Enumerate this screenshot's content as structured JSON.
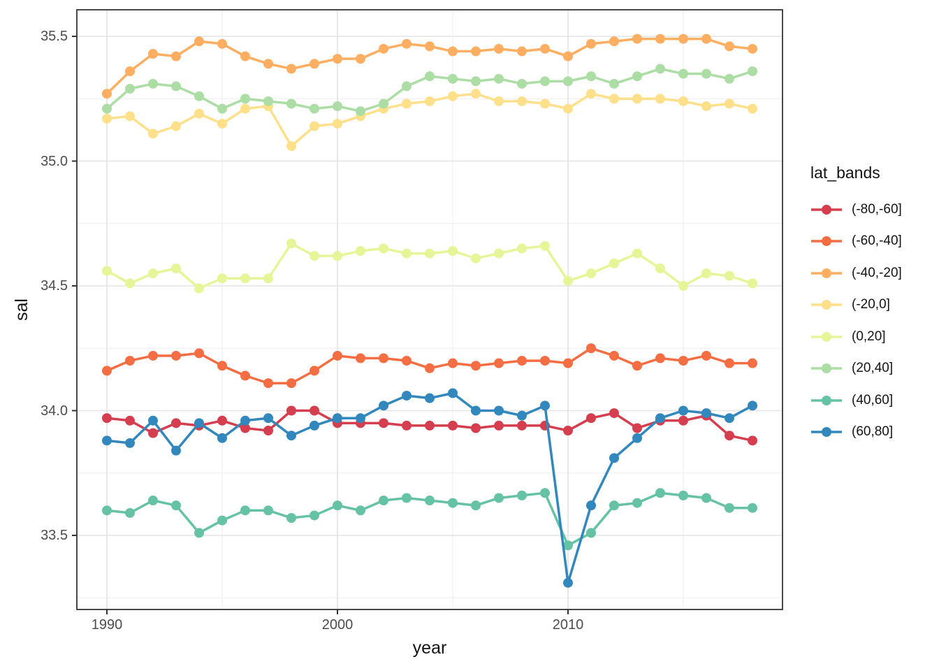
{
  "chart_data": {
    "type": "line",
    "title": "",
    "xlabel": "year",
    "ylabel": "sal",
    "legend_title": "lat_bands",
    "legend_position": "right",
    "grid": true,
    "x": [
      1990,
      1991,
      1992,
      1993,
      1994,
      1995,
      1996,
      1997,
      1998,
      1999,
      2000,
      2001,
      2002,
      2003,
      2004,
      2005,
      2006,
      2007,
      2008,
      2009,
      2010,
      2011,
      2012,
      2013,
      2014,
      2015,
      2016,
      2017,
      2018
    ],
    "x_ticks": [
      1990,
      2000,
      2010
    ],
    "x_tick_labels": [
      "1990",
      "2000",
      "2010"
    ],
    "x_minor_ticks": [
      1995,
      2005,
      2015
    ],
    "y_ticks": [
      33.5,
      34.0,
      34.5,
      35.0,
      35.5
    ],
    "y_tick_labels": [
      "33.5",
      "34.0",
      "34.5",
      "35.0",
      "35.5"
    ],
    "y_minor_ticks": [
      33.25,
      33.75,
      34.25,
      34.75,
      35.25
    ],
    "xlim": [
      1988.7,
      2019.3
    ],
    "ylim": [
      33.2,
      35.61
    ],
    "series": [
      {
        "name": "(-80,-60]",
        "color": "#D53E4F",
        "values": [
          33.97,
          33.96,
          33.91,
          33.95,
          33.94,
          33.96,
          33.93,
          33.92,
          34.0,
          34.0,
          33.95,
          33.95,
          33.95,
          33.94,
          33.94,
          33.94,
          33.93,
          33.94,
          33.94,
          33.94,
          33.92,
          33.97,
          33.99,
          33.93,
          33.96,
          33.96,
          33.98,
          33.9,
          33.88
        ]
      },
      {
        "name": "(-60,-40]",
        "color": "#F46D43",
        "values": [
          34.16,
          34.2,
          34.22,
          34.22,
          34.23,
          34.18,
          34.14,
          34.11,
          34.11,
          34.16,
          34.22,
          34.21,
          34.21,
          34.2,
          34.17,
          34.19,
          34.18,
          34.19,
          34.2,
          34.2,
          34.19,
          34.25,
          34.22,
          34.18,
          34.21,
          34.2,
          34.22,
          34.19,
          34.19
        ]
      },
      {
        "name": "(-40,-20]",
        "color": "#FDAE61",
        "values": [
          35.27,
          35.36,
          35.43,
          35.42,
          35.48,
          35.47,
          35.42,
          35.39,
          35.37,
          35.39,
          35.41,
          35.41,
          35.45,
          35.47,
          35.46,
          35.44,
          35.44,
          35.45,
          35.44,
          35.45,
          35.42,
          35.47,
          35.48,
          35.49,
          35.49,
          35.49,
          35.49,
          35.46,
          35.45
        ]
      },
      {
        "name": "(-20,0]",
        "color": "#FEE08B",
        "values": [
          35.17,
          35.18,
          35.11,
          35.14,
          35.19,
          35.15,
          35.21,
          35.22,
          35.06,
          35.14,
          35.15,
          35.18,
          35.21,
          35.23,
          35.24,
          35.26,
          35.27,
          35.24,
          35.24,
          35.23,
          35.21,
          35.27,
          35.25,
          35.25,
          35.25,
          35.24,
          35.22,
          35.23,
          35.21
        ]
      },
      {
        "name": "(0,20]",
        "color": "#E6F598",
        "values": [
          34.56,
          34.51,
          34.55,
          34.57,
          34.49,
          34.53,
          34.53,
          34.53,
          34.67,
          34.62,
          34.62,
          34.64,
          34.65,
          34.63,
          34.63,
          34.64,
          34.61,
          34.63,
          34.65,
          34.66,
          34.52,
          34.55,
          34.59,
          34.63,
          34.57,
          34.5,
          34.55,
          34.54,
          34.51
        ]
      },
      {
        "name": "(20,40]",
        "color": "#ABDDA4",
        "values": [
          35.21,
          35.29,
          35.31,
          35.3,
          35.26,
          35.21,
          35.25,
          35.24,
          35.23,
          35.21,
          35.22,
          35.2,
          35.23,
          35.3,
          35.34,
          35.33,
          35.32,
          35.33,
          35.31,
          35.32,
          35.32,
          35.34,
          35.31,
          35.34,
          35.37,
          35.35,
          35.35,
          35.33,
          35.36
        ]
      },
      {
        "name": "(40,60]",
        "color": "#66C2A5",
        "values": [
          33.6,
          33.59,
          33.64,
          33.62,
          33.51,
          33.56,
          33.6,
          33.6,
          33.57,
          33.58,
          33.62,
          33.6,
          33.64,
          33.65,
          33.64,
          33.63,
          33.62,
          33.65,
          33.66,
          33.67,
          33.46,
          33.51,
          33.62,
          33.63,
          33.67,
          33.66,
          33.65,
          33.61,
          33.61
        ]
      },
      {
        "name": "(60,80]",
        "color": "#3288BD",
        "values": [
          33.88,
          33.87,
          33.96,
          33.84,
          33.95,
          33.89,
          33.96,
          33.97,
          33.9,
          33.94,
          33.97,
          33.97,
          34.02,
          34.06,
          34.05,
          34.07,
          34.0,
          34.0,
          33.98,
          34.02,
          33.31,
          33.62,
          33.81,
          33.89,
          33.97,
          34.0,
          33.99,
          33.97,
          34.02
        ]
      }
    ],
    "style": {
      "panel_border_color": "#333333",
      "major_grid_color": "#e3e3e3",
      "minor_grid_color": "#f0f0f0",
      "tick_color": "#333333",
      "tick_text_color": "#4d4d4d",
      "point_radius": 7,
      "line_width": 3.5
    }
  }
}
